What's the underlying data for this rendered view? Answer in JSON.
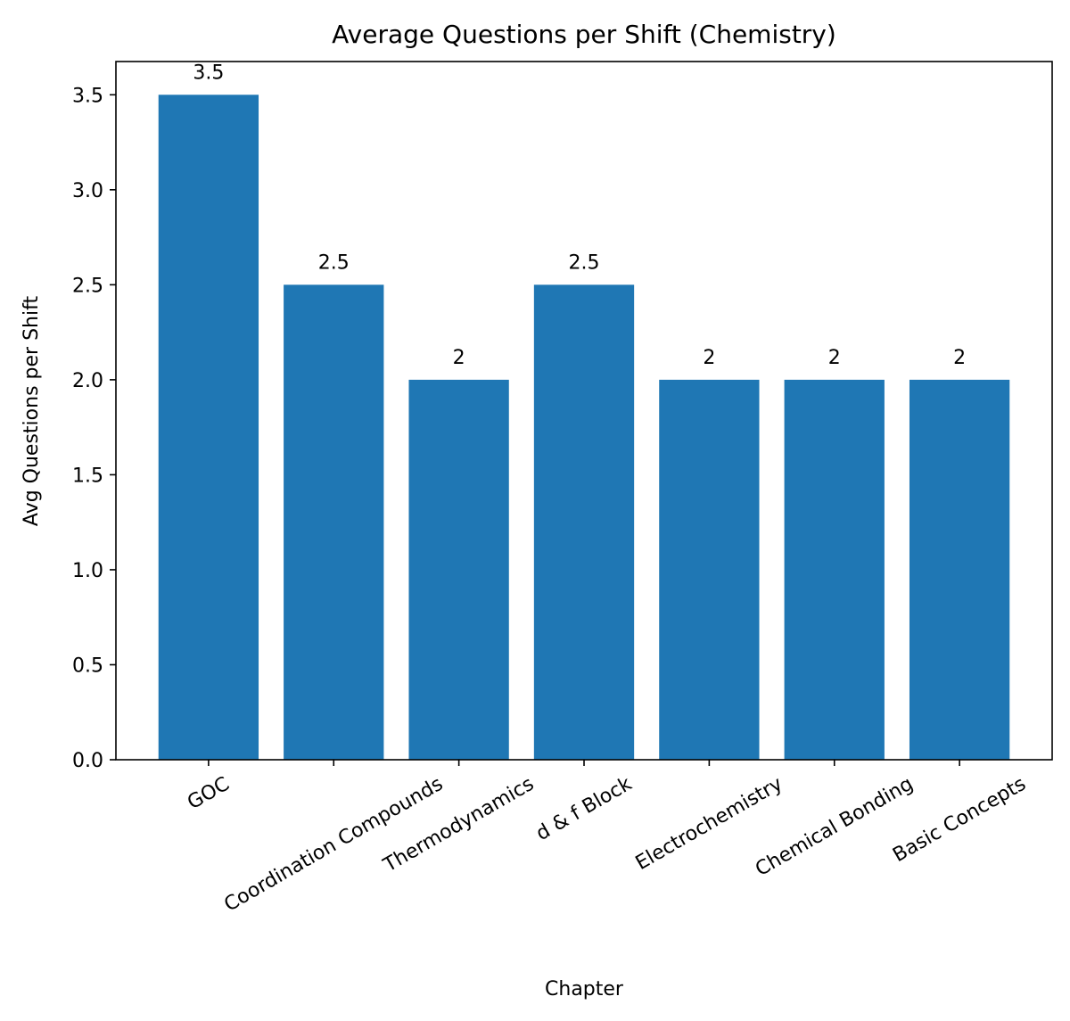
{
  "chart_data": {
    "type": "bar",
    "title": "Average Questions per Shift (Chemistry)",
    "xlabel": "Chapter",
    "ylabel": "Avg Questions per Shift",
    "categories": [
      "GOC",
      "Coordination Compounds",
      "Thermodynamics",
      "d & f Block",
      "Electrochemistry",
      "Chemical Bonding",
      "Basic Concepts"
    ],
    "values": [
      3.5,
      2.5,
      2,
      2.5,
      2,
      2,
      2
    ],
    "data_labels": [
      "3.5",
      "2.5",
      "2",
      "2.5",
      "2",
      "2",
      "2"
    ],
    "ylim": [
      0,
      3.675
    ],
    "yticks": [
      0.0,
      0.5,
      1.0,
      1.5,
      2.0,
      2.5,
      3.0,
      3.5
    ],
    "ytick_labels": [
      "0.0",
      "0.5",
      "1.0",
      "1.5",
      "2.0",
      "2.5",
      "3.0",
      "3.5"
    ],
    "xtick_rotation": 30,
    "grid": false,
    "bar_color": "#1f77b4"
  }
}
